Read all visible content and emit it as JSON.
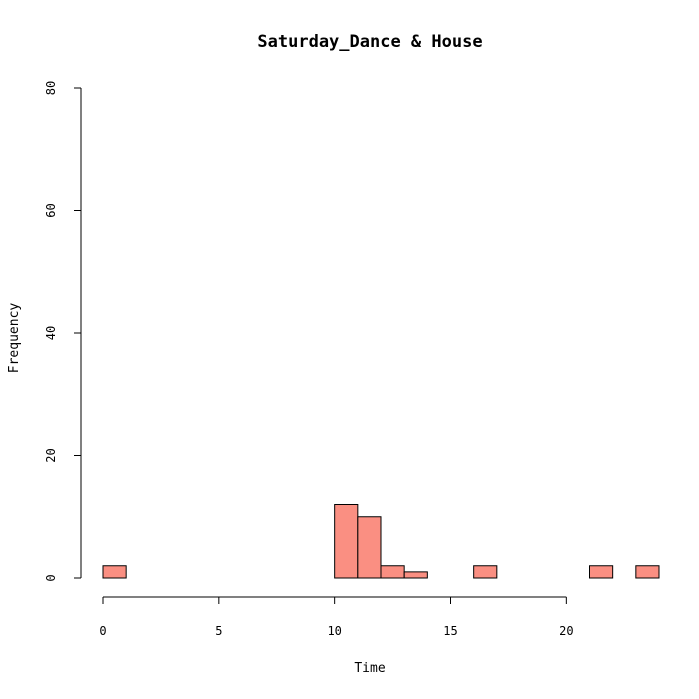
{
  "chart_data": {
    "type": "bar",
    "title": "Saturday_Dance & House",
    "xlabel": "Time",
    "ylabel": "Frequency",
    "bin_width": 1,
    "bins": [
      {
        "start": 0,
        "end": 1,
        "count": 2
      },
      {
        "start": 1,
        "end": 2,
        "count": 0
      },
      {
        "start": 2,
        "end": 3,
        "count": 0
      },
      {
        "start": 3,
        "end": 4,
        "count": 0
      },
      {
        "start": 4,
        "end": 5,
        "count": 0
      },
      {
        "start": 5,
        "end": 6,
        "count": 0
      },
      {
        "start": 6,
        "end": 7,
        "count": 0
      },
      {
        "start": 7,
        "end": 8,
        "count": 0
      },
      {
        "start": 8,
        "end": 9,
        "count": 0
      },
      {
        "start": 9,
        "end": 10,
        "count": 0
      },
      {
        "start": 10,
        "end": 11,
        "count": 12
      },
      {
        "start": 11,
        "end": 12,
        "count": 10
      },
      {
        "start": 12,
        "end": 13,
        "count": 2
      },
      {
        "start": 13,
        "end": 14,
        "count": 1
      },
      {
        "start": 14,
        "end": 15,
        "count": 0
      },
      {
        "start": 15,
        "end": 16,
        "count": 0
      },
      {
        "start": 16,
        "end": 17,
        "count": 2
      },
      {
        "start": 17,
        "end": 18,
        "count": 0
      },
      {
        "start": 18,
        "end": 19,
        "count": 0
      },
      {
        "start": 19,
        "end": 20,
        "count": 0
      },
      {
        "start": 20,
        "end": 21,
        "count": 0
      },
      {
        "start": 21,
        "end": 22,
        "count": 2
      },
      {
        "start": 22,
        "end": 23,
        "count": 0
      },
      {
        "start": 23,
        "end": 24,
        "count": 2
      }
    ],
    "xlim": [
      0,
      24
    ],
    "ylim": [
      0,
      80
    ],
    "x_ticks": [
      0,
      5,
      10,
      15,
      20
    ],
    "y_ticks": [
      0,
      20,
      40,
      60,
      80
    ],
    "grid": false,
    "legend": "none",
    "colors": {
      "bar_fill": "#fa8f82",
      "bar_stroke": "#000000",
      "axis": "#000000"
    }
  }
}
